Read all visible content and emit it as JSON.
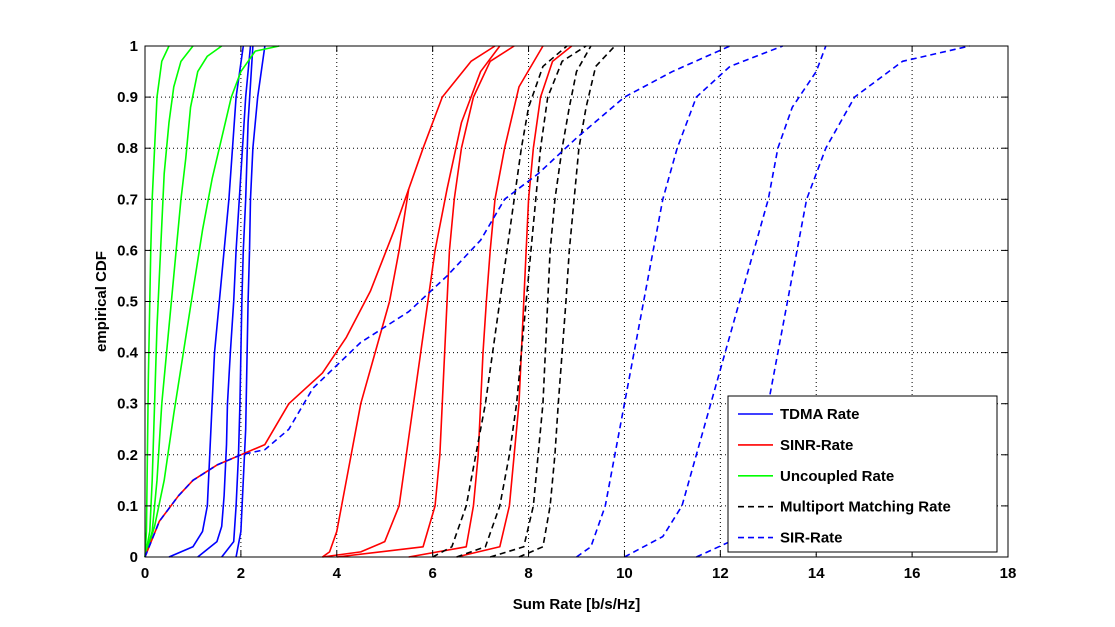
{
  "chart_data": {
    "type": "line",
    "title": "",
    "xlabel": "Sum Rate [b/s/Hz]",
    "ylabel": "empirical CDF",
    "xlim": [
      0,
      18
    ],
    "ylim": [
      0,
      1
    ],
    "xticks": [
      "0",
      "2",
      "4",
      "6",
      "8",
      "10",
      "12",
      "14",
      "16",
      "18"
    ],
    "yticks": [
      "0",
      "0.1",
      "0.2",
      "0.3",
      "0.4",
      "0.5",
      "0.6",
      "0.7",
      "0.8",
      "0.9",
      "1"
    ],
    "grid": true,
    "legend_position": "bottom-right",
    "legend": [
      {
        "label": "TDMA Rate",
        "color": "#0000ff",
        "dash": "solid"
      },
      {
        "label": "SINR-Rate",
        "color": "#ff0000",
        "dash": "solid"
      },
      {
        "label": "Uncoupled Rate",
        "color": "#00ff00",
        "dash": "solid"
      },
      {
        "label": "Multiport Matching Rate",
        "color": "#000000",
        "dash": "dashed"
      },
      {
        "label": "SIR-Rate",
        "color": "#0000ff",
        "dash": "dashed"
      }
    ],
    "series": [
      {
        "group": "TDMA Rate",
        "color": "#0000ff",
        "dash": "solid",
        "x": [
          0.5,
          1.0,
          1.2,
          1.3,
          1.35,
          1.4,
          1.45,
          1.55,
          1.65,
          1.75,
          1.9,
          2.05
        ],
        "y": [
          0.0,
          0.02,
          0.05,
          0.1,
          0.2,
          0.3,
          0.4,
          0.5,
          0.6,
          0.7,
          0.9,
          1.0
        ]
      },
      {
        "group": "TDMA Rate",
        "color": "#0000ff",
        "dash": "solid",
        "x": [
          1.1,
          1.5,
          1.6,
          1.65,
          1.7,
          1.72,
          1.78,
          1.85,
          1.9,
          2.0,
          2.1,
          2.2
        ],
        "y": [
          0.0,
          0.03,
          0.06,
          0.12,
          0.22,
          0.3,
          0.4,
          0.5,
          0.6,
          0.75,
          0.9,
          1.0
        ]
      },
      {
        "group": "TDMA Rate",
        "color": "#0000ff",
        "dash": "solid",
        "x": [
          1.6,
          1.85,
          1.9,
          1.95,
          1.98,
          2.0,
          2.02,
          2.05,
          2.1,
          2.15,
          2.25
        ],
        "y": [
          0.0,
          0.03,
          0.1,
          0.2,
          0.3,
          0.4,
          0.5,
          0.6,
          0.7,
          0.85,
          1.0
        ]
      },
      {
        "group": "TDMA Rate",
        "color": "#0000ff",
        "dash": "solid",
        "x": [
          1.9,
          2.0,
          2.05,
          2.1,
          2.12,
          2.15,
          2.18,
          2.2,
          2.25,
          2.35,
          2.5
        ],
        "y": [
          0.0,
          0.05,
          0.15,
          0.25,
          0.35,
          0.5,
          0.6,
          0.7,
          0.8,
          0.9,
          1.0
        ]
      },
      {
        "group": "Uncoupled Rate",
        "color": "#00ff00",
        "dash": "solid",
        "x": [
          0.0,
          0.03,
          0.05,
          0.07,
          0.1,
          0.12,
          0.15,
          0.2,
          0.25,
          0.35,
          0.5
        ],
        "y": [
          0.0,
          0.05,
          0.2,
          0.35,
          0.5,
          0.6,
          0.7,
          0.8,
          0.9,
          0.97,
          1.0
        ]
      },
      {
        "group": "Uncoupled Rate",
        "color": "#00ff00",
        "dash": "solid",
        "x": [
          0.0,
          0.1,
          0.15,
          0.2,
          0.25,
          0.3,
          0.35,
          0.4,
          0.5,
          0.6,
          0.75,
          1.0
        ],
        "y": [
          0.0,
          0.05,
          0.15,
          0.3,
          0.45,
          0.55,
          0.65,
          0.75,
          0.85,
          0.92,
          0.97,
          1.0
        ]
      },
      {
        "group": "Uncoupled Rate",
        "color": "#00ff00",
        "dash": "solid",
        "x": [
          0.0,
          0.15,
          0.25,
          0.35,
          0.45,
          0.55,
          0.65,
          0.75,
          0.85,
          0.95,
          1.1,
          1.3,
          1.6
        ],
        "y": [
          0.0,
          0.05,
          0.15,
          0.3,
          0.4,
          0.5,
          0.6,
          0.7,
          0.78,
          0.88,
          0.95,
          0.98,
          1.0
        ]
      },
      {
        "group": "Uncoupled Rate",
        "color": "#00ff00",
        "dash": "solid",
        "x": [
          0.0,
          0.2,
          0.4,
          0.6,
          0.8,
          1.0,
          1.2,
          1.4,
          1.6,
          1.8,
          2.0,
          2.3,
          2.8
        ],
        "y": [
          0.0,
          0.06,
          0.15,
          0.28,
          0.4,
          0.52,
          0.64,
          0.74,
          0.82,
          0.9,
          0.95,
          0.99,
          1.0
        ]
      },
      {
        "group": "SINR-Rate",
        "color": "#ff0000",
        "dash": "solid",
        "x": [
          3.7,
          4.5,
          5.0,
          5.3,
          5.45,
          5.6,
          5.75,
          5.9,
          6.05,
          6.3,
          6.6,
          7.0,
          7.4
        ],
        "y": [
          0.0,
          0.01,
          0.03,
          0.1,
          0.2,
          0.3,
          0.4,
          0.5,
          0.6,
          0.72,
          0.85,
          0.95,
          1.0
        ]
      },
      {
        "group": "SINR-Rate",
        "color": "#ff0000",
        "dash": "solid",
        "x": [
          4.0,
          5.8,
          6.05,
          6.15,
          6.2,
          6.25,
          6.3,
          6.35,
          6.45,
          6.6,
          6.85,
          7.2,
          7.7
        ],
        "y": [
          0.0,
          0.02,
          0.1,
          0.2,
          0.3,
          0.4,
          0.5,
          0.6,
          0.7,
          0.8,
          0.9,
          0.97,
          1.0
        ]
      },
      {
        "group": "SINR-Rate",
        "color": "#ff0000",
        "dash": "solid",
        "x": [
          5.5,
          6.7,
          6.85,
          6.95,
          7.0,
          7.05,
          7.12,
          7.2,
          7.3,
          7.5,
          7.8,
          8.3
        ],
        "y": [
          0.0,
          0.02,
          0.1,
          0.2,
          0.3,
          0.4,
          0.5,
          0.6,
          0.7,
          0.8,
          0.92,
          1.0
        ]
      },
      {
        "group": "SINR-Rate",
        "color": "#ff0000",
        "dash": "solid",
        "x": [
          6.5,
          7.4,
          7.6,
          7.7,
          7.8,
          7.85,
          7.9,
          7.95,
          8.0,
          8.1,
          8.25,
          8.5,
          8.9
        ],
        "y": [
          0.0,
          0.02,
          0.1,
          0.2,
          0.3,
          0.4,
          0.5,
          0.6,
          0.7,
          0.8,
          0.9,
          0.97,
          1.0
        ]
      },
      {
        "group": "SINR-Rate",
        "color": "#ff0000",
        "dash": "solid",
        "x": [
          3.7,
          3.85,
          4.0,
          4.2,
          4.5,
          4.8,
          5.1,
          5.3,
          5.5
        ],
        "y": [
          0.0,
          0.01,
          0.05,
          0.15,
          0.3,
          0.4,
          0.5,
          0.6,
          0.72
        ]
      },
      {
        "group": "SINR-Rate",
        "color": "#ff0000",
        "dash": "solid",
        "x": [
          0.0,
          0.3,
          0.7,
          1.0,
          1.5,
          2.0,
          2.5,
          3.0,
          3.7,
          4.2,
          4.7,
          5.2,
          5.5,
          5.8,
          6.2,
          6.8,
          7.3
        ],
        "y": [
          0.0,
          0.07,
          0.12,
          0.15,
          0.18,
          0.2,
          0.22,
          0.3,
          0.36,
          0.43,
          0.52,
          0.64,
          0.72,
          0.8,
          0.9,
          0.97,
          1.0
        ]
      },
      {
        "group": "Multiport Matching Rate",
        "color": "#000000",
        "dash": "dashed",
        "x": [
          6.0,
          6.4,
          6.7,
          6.9,
          7.1,
          7.25,
          7.4,
          7.55,
          7.7,
          7.85,
          8.0,
          8.3,
          8.8
        ],
        "y": [
          0.0,
          0.02,
          0.1,
          0.2,
          0.3,
          0.4,
          0.5,
          0.6,
          0.7,
          0.8,
          0.88,
          0.96,
          1.0
        ]
      },
      {
        "group": "Multiport Matching Rate",
        "color": "#000000",
        "dash": "dashed",
        "x": [
          6.5,
          7.1,
          7.4,
          7.6,
          7.75,
          7.85,
          7.95,
          8.05,
          8.15,
          8.25,
          8.4,
          8.7,
          9.2
        ],
        "y": [
          0.0,
          0.02,
          0.1,
          0.2,
          0.3,
          0.4,
          0.5,
          0.6,
          0.7,
          0.8,
          0.9,
          0.97,
          1.0
        ]
      },
      {
        "group": "Multiport Matching Rate",
        "color": "#000000",
        "dash": "dashed",
        "x": [
          7.2,
          7.9,
          8.1,
          8.2,
          8.3,
          8.35,
          8.4,
          8.45,
          8.55,
          8.7,
          8.85,
          9.0,
          9.3
        ],
        "y": [
          0.0,
          0.02,
          0.1,
          0.2,
          0.3,
          0.4,
          0.5,
          0.6,
          0.7,
          0.8,
          0.88,
          0.95,
          1.0
        ]
      },
      {
        "group": "Multiport Matching Rate",
        "color": "#000000",
        "dash": "dashed",
        "x": [
          7.8,
          8.3,
          8.45,
          8.55,
          8.62,
          8.7,
          8.78,
          8.85,
          8.95,
          9.05,
          9.2,
          9.4,
          9.8
        ],
        "y": [
          0.0,
          0.02,
          0.1,
          0.2,
          0.3,
          0.4,
          0.5,
          0.6,
          0.7,
          0.8,
          0.88,
          0.96,
          1.0
        ]
      },
      {
        "group": "SIR-Rate",
        "color": "#0000ff",
        "dash": "dashed",
        "x": [
          0.0,
          0.3,
          0.7,
          1.0,
          1.5,
          2.0,
          2.5,
          3.0,
          3.5,
          4.5,
          5.5,
          6.3,
          7.0,
          7.5,
          8.2,
          9.0,
          10.0,
          11.0,
          12.2
        ],
        "y": [
          0.0,
          0.07,
          0.12,
          0.15,
          0.18,
          0.2,
          0.21,
          0.25,
          0.33,
          0.42,
          0.48,
          0.55,
          0.62,
          0.7,
          0.75,
          0.82,
          0.9,
          0.95,
          1.0
        ]
      },
      {
        "group": "SIR-Rate",
        "color": "#0000ff",
        "dash": "dashed",
        "x": [
          9.0,
          9.3,
          9.6,
          9.8,
          10.0,
          10.2,
          10.4,
          10.6,
          10.8,
          11.1,
          11.5,
          12.2,
          13.3
        ],
        "y": [
          0.0,
          0.02,
          0.1,
          0.2,
          0.3,
          0.4,
          0.5,
          0.6,
          0.7,
          0.8,
          0.9,
          0.96,
          1.0
        ]
      },
      {
        "group": "SIR-Rate",
        "color": "#0000ff",
        "dash": "dashed",
        "x": [
          10.0,
          10.8,
          11.2,
          11.5,
          11.8,
          12.1,
          12.4,
          12.7,
          13.0,
          13.2,
          13.5,
          14.0,
          14.2
        ],
        "y": [
          0.0,
          0.04,
          0.1,
          0.2,
          0.3,
          0.4,
          0.5,
          0.6,
          0.7,
          0.8,
          0.88,
          0.95,
          1.0
        ]
      },
      {
        "group": "SIR-Rate",
        "color": "#0000ff",
        "dash": "dashed",
        "x": [
          11.5,
          12.2,
          12.5,
          12.8,
          13.0,
          13.2,
          13.4,
          13.6,
          13.8,
          14.2,
          14.8,
          15.8,
          17.2
        ],
        "y": [
          0.0,
          0.03,
          0.1,
          0.2,
          0.3,
          0.4,
          0.5,
          0.6,
          0.7,
          0.8,
          0.9,
          0.97,
          1.0
        ]
      }
    ]
  }
}
